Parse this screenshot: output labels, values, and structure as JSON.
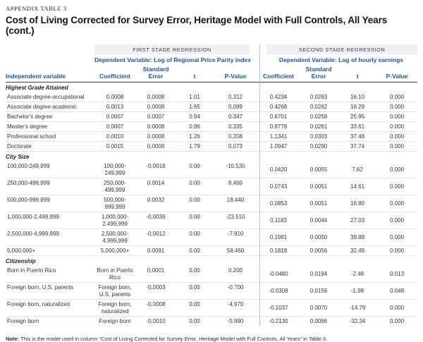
{
  "page": {
    "eyebrow": "APPENDIX TABLE 3",
    "title": "Cost of Living Corrected for Survey Error, Heritage Model with Full Controls, All Years (cont.)",
    "note_label": "Note:",
    "note_text": " This is the model used in column “Cost of Living Corrected for Survey Error, Heritage Model with Full Controls, All Years” in Table 3."
  },
  "colors": {
    "accent_blue": "#1d539f",
    "group_bar_gray": "#eef0f4",
    "header_rule_dark": "#3a3a3a",
    "row_rule_light": "#e3e3e3",
    "stage_divider_gray": "#b9b9b9"
  },
  "table": {
    "row_header": "Independent variable",
    "columns": [
      "Coefficient",
      "Standard Error",
      "t",
      "P-Value"
    ],
    "stage1": {
      "group_label": "FIRST STAGE REGRESSION",
      "dependent_variable": "Dependent Variable: Log of Regional Price Parity index"
    },
    "stage2": {
      "group_label": "SECOND STAGE REGRESSION",
      "dependent_variable": "Dependent Variable: Log of hourly earnings"
    },
    "sections": [
      {
        "label": "Highest Grade Attained",
        "rows": [
          {
            "label": "Associate degree-occupational",
            "s1": [
              "0.0008",
              "0.0008",
              "1.01",
              "0.312"
            ],
            "s2": [
              "0.4234",
              "0.0263",
              "16.10",
              "0.000"
            ]
          },
          {
            "label": "Associate degree-academic",
            "s1": [
              "0.0013",
              "0.0008",
              "1.65",
              "0.099"
            ],
            "s2": [
              "0.4268",
              "0.0262",
              "16.29",
              "0.000"
            ]
          },
          {
            "label": "Bachelor's degree",
            "s1": [
              "0.0007",
              "0.0007",
              "0.94",
              "0.347"
            ],
            "s2": [
              "0.6701",
              "0.0258",
              "25.95",
              "0.000"
            ]
          },
          {
            "label": "Master's degree",
            "s1": [
              "0.0007",
              "0.0008",
              "0.96",
              "0.335"
            ],
            "s2": [
              "0.8778",
              "0.0261",
              "33.61",
              "0.000"
            ]
          },
          {
            "label": "Professional school",
            "s1": [
              "0.0010",
              "0.0008",
              "1.26",
              "0.208"
            ],
            "s2": [
              "1.1341",
              "0.0303",
              "37.48",
              "0.000"
            ]
          },
          {
            "label": "Doctorate",
            "s1": [
              "0.0015",
              "0.0008",
              "1.79",
              "0.073"
            ],
            "s2": [
              "1.0947",
              "0.0290",
              "37.74",
              "0.000"
            ]
          }
        ]
      },
      {
        "label": "City Size",
        "rows": [
          {
            "label": "100,000-249,999",
            "s1": [
              "100,000-249,999",
              "-0.0018",
              "0.00",
              "-10.530"
            ],
            "s2": [
              "0.0420",
              "0.0055",
              "7.62",
              "0.000"
            ]
          },
          {
            "label": "250,000-499,999",
            "s1": [
              "250,000-499,999",
              "0.0014",
              "0.00",
              "8.460"
            ],
            "s2": [
              "0.0743",
              "0.0051",
              "14.61",
              "0.000"
            ]
          },
          {
            "label": "500,000-999,999",
            "s1": [
              "500,000-999,999",
              "0.0032",
              "0.00",
              "18.440"
            ],
            "s2": [
              "0.0853",
              "0.0051",
              "16.80",
              "0.000"
            ]
          },
          {
            "label": "1,000,000-2,499,999",
            "s1": [
              "1,000,000-2,499,999",
              "-0.0036",
              "0.00",
              "-23.510"
            ],
            "s2": [
              "0.1183",
              "0.0044",
              "27.03",
              "0.000"
            ]
          },
          {
            "label": "2,500,000-4,999,999",
            "s1": [
              "2,500,000-4,999,999",
              "-0.0012",
              "0.00",
              "-7.910"
            ],
            "s2": [
              "0.1981",
              "0.0050",
              "39.88",
              "0.000"
            ]
          },
          {
            "label": "5,000,000+",
            "s1": [
              "5,000,000+",
              "0.0091",
              "0.00",
              "58.460"
            ],
            "s2": [
              "0.1818",
              "0.0056",
              "32.49",
              "0.000"
            ]
          }
        ]
      },
      {
        "label": "Citizenship",
        "rows": [
          {
            "label": "Born in Puerto Rico",
            "s1": [
              "Born in Puerto Rico",
              "0.0001",
              "0.00",
              "0.200"
            ],
            "s2": [
              "-0.0480",
              "0.0194",
              "-2.48",
              "0.013"
            ]
          },
          {
            "label": "Foreign born, U.S. parents",
            "s1": [
              "Foreign born, U.S. parents",
              "-0.0003",
              "0.00",
              "-0.700"
            ],
            "s2": [
              "-0.0308",
              "0.0156",
              "-1.98",
              "0.048"
            ]
          },
          {
            "label": "Foreign born, naturalized",
            "s1": [
              "Foreign born, naturalized",
              "-0.0008",
              "0.00",
              "-4.970"
            ],
            "s2": [
              "-0.1037",
              "0.0070",
              "-14.79",
              "0.000"
            ]
          },
          {
            "label": "Foreign born",
            "s1": [
              "Foreign born",
              "-0.0010",
              "0.00",
              "-5.990"
            ],
            "s2": [
              "-0.2130",
              "0.0066",
              "-32.34",
              "0.000"
            ]
          }
        ]
      }
    ]
  }
}
